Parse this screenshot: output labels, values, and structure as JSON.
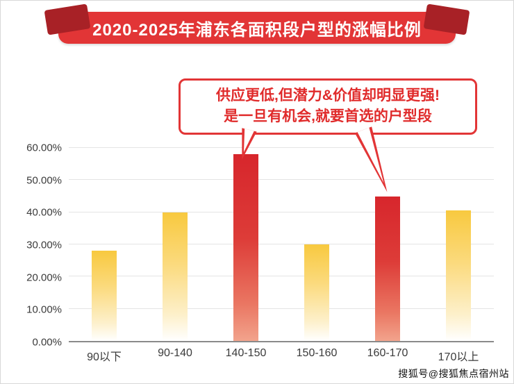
{
  "banner": {
    "title": "2020-2025年浦东各面积段户型的涨幅比例"
  },
  "callout": {
    "line1": "供应更低,但潜力&价值却明显更强!",
    "line2": "是一旦有机会,就要首选的户型段"
  },
  "watermark": "搜狐号@搜狐焦点宿州站",
  "chart_data": {
    "type": "bar",
    "title": "2020-2025年浦东各面积段户型的涨幅比例",
    "categories": [
      "90以下",
      "90-140",
      "140-150",
      "150-160",
      "160-170",
      "170以上"
    ],
    "values": [
      28,
      40,
      58,
      30,
      45,
      40.5
    ],
    "highlighted": [
      false,
      false,
      true,
      false,
      true,
      false
    ],
    "xlabel": "",
    "ylabel": "",
    "ylim": [
      0,
      60
    ],
    "yticks": [
      "0.00%",
      "10.00%",
      "20.00%",
      "30.00%",
      "40.00%",
      "50.00%",
      "60.00%"
    ],
    "grid": true,
    "legend": false,
    "colors": {
      "bar_normal_top": "#f8c93f",
      "bar_normal_bottom": "#ffffff",
      "bar_highlight_top": "#d7262c",
      "bar_highlight_bottom": "#f2a38c",
      "banner_red": "#e23536",
      "ribbon_fold_red": "#a82126",
      "callout_text_red": "#e02b2b"
    }
  }
}
